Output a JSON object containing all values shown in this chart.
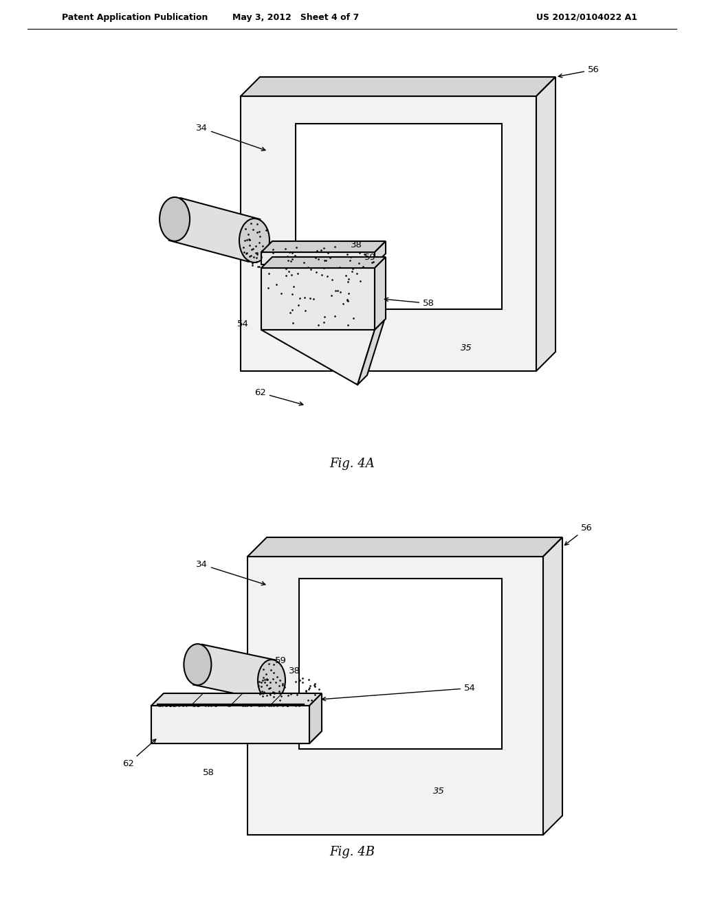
{
  "header_left": "Patent Application Publication",
  "header_mid": "May 3, 2012   Sheet 4 of 7",
  "header_right": "US 2012/0104022 A1",
  "fig4a_label": "Fig. 4A",
  "fig4b_label": "Fig. 4B",
  "bg_color": "#ffffff",
  "line_color": "#000000",
  "header_fontsize": 9,
  "fig_label_fontsize": 13,
  "ref_fontsize": 9.5
}
